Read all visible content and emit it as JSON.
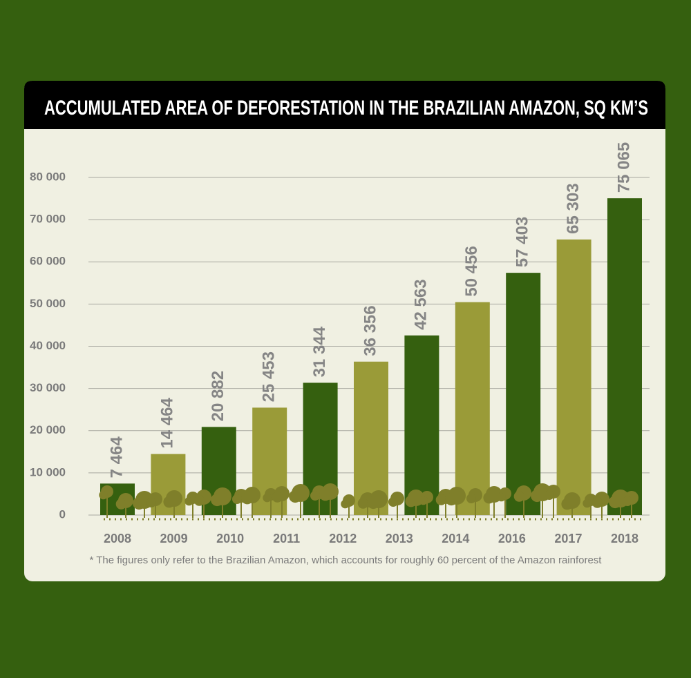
{
  "chart_data": {
    "type": "bar",
    "title": "ACCUMULATED AREA OF DEFORESTATION IN THE BRAZILIAN AMAZON, SQ KM’S",
    "categories": [
      "2008",
      "2009",
      "2010",
      "2011",
      "2012",
      "2013",
      "2014",
      null,
      "2016",
      "2017",
      "2018"
    ],
    "values": [
      7464,
      14464,
      20882,
      25453,
      31344,
      36356,
      42563,
      50456,
      57403,
      65303,
      75065
    ],
    "value_labels": [
      "7 464",
      "14 464",
      "20 882",
      "25 453",
      "31 344",
      "36 356",
      "42 563",
      "50 456",
      "57 403",
      "65 303",
      "75 065"
    ],
    "colors": [
      "#35600f",
      "#9a9b38",
      "#35600f",
      "#9a9b38",
      "#35600f",
      "#9a9b38",
      "#35600f",
      "#9a9b38",
      "#35600f",
      "#9a9b38",
      "#35600f"
    ],
    "ylim": [
      0,
      80000
    ],
    "yticks": [
      0,
      {
        "value": 10000,
        "label": "10 000"
      },
      {
        "value": 20000,
        "label": "20 000"
      },
      {
        "value": 30000,
        "label": "30 000"
      },
      {
        "value": 40000,
        "label": "40 000"
      },
      {
        "value": 50000,
        "label": "50 000"
      },
      {
        "value": 60000,
        "label": "60 000"
      },
      {
        "value": 70000,
        "label": "70 000"
      },
      {
        "value": 80000,
        "label": "80 000"
      }
    ],
    "grid": true,
    "footnote": "* The figures only refer to the Brazilian Amazon, which accounts for roughly 60 percent of the Amazon rainforest"
  }
}
